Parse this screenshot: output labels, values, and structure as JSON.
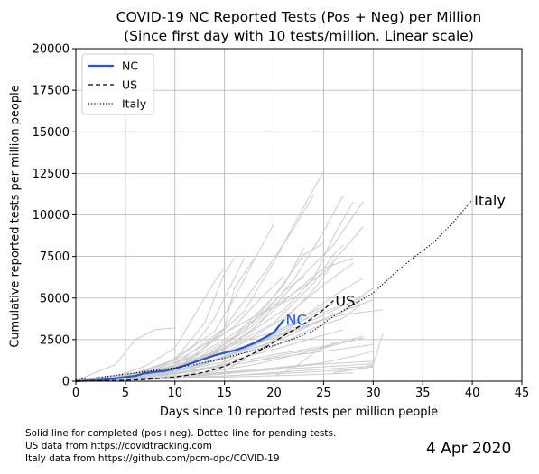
{
  "chart_data": {
    "type": "line",
    "title": "COVID-19 NC Reported Tests (Pos + Neg) per Million",
    "subtitle": "(Since first day with 10 tests/million. Linear scale)",
    "xlabel": "Days since 10 reported tests per million people",
    "ylabel": "Cumulative reported tests per million people",
    "xlim": [
      0,
      45
    ],
    "ylim": [
      0,
      20000
    ],
    "xticks": [
      "0",
      "5",
      "10",
      "15",
      "20",
      "25",
      "30",
      "35",
      "40",
      "45"
    ],
    "xtick_values": [
      0,
      5,
      10,
      15,
      20,
      25,
      30,
      35,
      40,
      45
    ],
    "yticks": [
      "0",
      "2500",
      "5000",
      "7500",
      "10000",
      "12500",
      "15000",
      "17500",
      "20000"
    ],
    "ytick_values": [
      0,
      2500,
      5000,
      7500,
      10000,
      12500,
      15000,
      17500,
      20000
    ],
    "grid": true,
    "legend_position": "top-left",
    "series": [
      {
        "name": "NC",
        "label": "NC",
        "style": "solid",
        "color": "#1f55e6",
        "x": [
          0,
          1,
          2,
          3,
          4,
          5,
          6,
          7,
          8,
          9,
          10,
          11,
          12,
          13,
          14,
          15,
          16,
          17,
          18,
          19,
          20,
          21
        ],
        "y": [
          0,
          30,
          60,
          100,
          170,
          250,
          320,
          480,
          560,
          620,
          760,
          950,
          1150,
          1350,
          1550,
          1700,
          1850,
          2050,
          2300,
          2600,
          2950,
          3700
        ]
      },
      {
        "name": "US",
        "label": "US",
        "style": "dashed",
        "color": "#000000",
        "x": [
          0,
          1,
          2,
          3,
          4,
          5,
          6,
          7,
          8,
          9,
          10,
          11,
          12,
          13,
          14,
          15,
          16,
          17,
          18,
          19,
          20,
          21,
          22,
          23,
          24,
          25,
          26
        ],
        "y": [
          0,
          10,
          20,
          30,
          45,
          60,
          80,
          110,
          150,
          200,
          260,
          340,
          430,
          550,
          700,
          900,
          1150,
          1420,
          1700,
          2000,
          2350,
          2750,
          3100,
          3450,
          3850,
          4300,
          4850
        ]
      },
      {
        "name": "Italy",
        "label": "Italy",
        "style": "dotted",
        "color": "#000000",
        "x": [
          0,
          2,
          4,
          6,
          8,
          10,
          12,
          14,
          16,
          18,
          20,
          22,
          24,
          26,
          28,
          30,
          32,
          34,
          36,
          38,
          40
        ],
        "y": [
          100,
          200,
          350,
          500,
          650,
          800,
          1000,
          1250,
          1550,
          1850,
          2150,
          2550,
          3050,
          3900,
          4600,
          5300,
          6400,
          7400,
          8300,
          9500,
          10900
        ]
      }
    ],
    "background_series": [
      [
        [
          0,
          0
        ],
        [
          5,
          250
        ],
        [
          10,
          800
        ],
        [
          15,
          2500
        ],
        [
          20,
          4500
        ],
        [
          25,
          6500
        ],
        [
          29,
          9300
        ]
      ],
      [
        [
          0,
          0
        ],
        [
          4,
          250
        ],
        [
          8,
          600
        ],
        [
          12,
          1200
        ],
        [
          16,
          1900
        ],
        [
          20,
          2700
        ],
        [
          24,
          3700
        ],
        [
          28,
          4800
        ],
        [
          30,
          5600
        ]
      ],
      [
        [
          0,
          0
        ],
        [
          5,
          200
        ],
        [
          10,
          700
        ],
        [
          14,
          1600
        ],
        [
          18,
          3200
        ],
        [
          22,
          5800
        ],
        [
          26,
          8200
        ],
        [
          29,
          10800
        ]
      ],
      [
        [
          0,
          0
        ],
        [
          6,
          350
        ],
        [
          12,
          1500
        ],
        [
          17,
          4200
        ],
        [
          20,
          7200
        ],
        [
          23,
          10500
        ],
        [
          25,
          12600
        ]
      ],
      [
        [
          0,
          0
        ],
        [
          6,
          300
        ],
        [
          10,
          1000
        ],
        [
          15,
          3200
        ],
        [
          19,
          6500
        ],
        [
          22,
          9200
        ],
        [
          24,
          11200
        ]
      ],
      [
        [
          0,
          0
        ],
        [
          4,
          150
        ],
        [
          8,
          500
        ],
        [
          12,
          1300
        ],
        [
          16,
          2700
        ],
        [
          20,
          5100
        ],
        [
          23,
          7600
        ],
        [
          25,
          8300
        ]
      ],
      [
        [
          0,
          0
        ],
        [
          5,
          200
        ],
        [
          10,
          600
        ],
        [
          15,
          1400
        ],
        [
          19,
          2400
        ],
        [
          23,
          3300
        ],
        [
          27,
          4200
        ],
        [
          29,
          5100
        ]
      ],
      [
        [
          0,
          0
        ],
        [
          4,
          200
        ],
        [
          9,
          600
        ],
        [
          13,
          1400
        ],
        [
          16,
          2200
        ],
        [
          20,
          3000
        ],
        [
          24,
          3900
        ],
        [
          27,
          4600
        ]
      ],
      [
        [
          0,
          0
        ],
        [
          6,
          300
        ],
        [
          11,
          800
        ],
        [
          15,
          1500
        ],
        [
          19,
          2200
        ],
        [
          22,
          3000
        ],
        [
          25,
          3700
        ]
      ],
      [
        [
          0,
          0
        ],
        [
          7,
          250
        ],
        [
          12,
          600
        ],
        [
          17,
          1100
        ],
        [
          21,
          1600
        ],
        [
          25,
          2000
        ],
        [
          29,
          2600
        ]
      ],
      [
        [
          0,
          0
        ],
        [
          5,
          200
        ],
        [
          10,
          500
        ],
        [
          15,
          900
        ],
        [
          20,
          1400
        ],
        [
          25,
          1800
        ],
        [
          30,
          2200
        ]
      ],
      [
        [
          0,
          0
        ],
        [
          8,
          200
        ],
        [
          14,
          400
        ],
        [
          20,
          700
        ],
        [
          26,
          900
        ],
        [
          30,
          1050
        ]
      ],
      [
        [
          0,
          0
        ],
        [
          10,
          200
        ],
        [
          16,
          350
        ],
        [
          22,
          500
        ],
        [
          28,
          700
        ],
        [
          30,
          850
        ]
      ],
      [
        [
          0,
          0
        ],
        [
          6,
          100
        ],
        [
          12,
          200
        ],
        [
          18,
          300
        ],
        [
          24,
          400
        ],
        [
          28,
          500
        ]
      ],
      [
        [
          0,
          50
        ],
        [
          4,
          1000
        ],
        [
          6,
          2500
        ],
        [
          8,
          3100
        ],
        [
          10,
          3200
        ]
      ],
      [
        [
          0,
          0
        ],
        [
          5,
          300
        ],
        [
          10,
          1300
        ],
        [
          14,
          3000
        ],
        [
          16,
          5000
        ],
        [
          18,
          7300
        ],
        [
          20,
          9500
        ]
      ],
      [
        [
          0,
          0
        ],
        [
          5,
          300
        ],
        [
          9,
          1000
        ],
        [
          12,
          2200
        ],
        [
          14,
          3800
        ],
        [
          15,
          5000
        ],
        [
          17,
          7400
        ]
      ],
      [
        [
          0,
          0
        ],
        [
          8,
          500
        ],
        [
          12,
          1500
        ],
        [
          15,
          3200
        ],
        [
          16,
          5600
        ],
        [
          18,
          7400
        ]
      ],
      [
        [
          0,
          0
        ],
        [
          6,
          500
        ],
        [
          10,
          1300
        ],
        [
          13,
          3500
        ],
        [
          15,
          6500
        ],
        [
          16,
          7400
        ]
      ],
      [
        [
          0,
          0
        ],
        [
          4,
          300
        ],
        [
          7,
          900
        ],
        [
          10,
          2000
        ],
        [
          12,
          4000
        ],
        [
          14,
          6000
        ],
        [
          15,
          6800
        ]
      ],
      [
        [
          0,
          0
        ],
        [
          5,
          250
        ],
        [
          10,
          900
        ],
        [
          15,
          1900
        ],
        [
          20,
          3500
        ],
        [
          24,
          5900
        ],
        [
          26,
          7600
        ],
        [
          27,
          8200
        ]
      ],
      [
        [
          0,
          0
        ],
        [
          6,
          300
        ],
        [
          12,
          1100
        ],
        [
          17,
          2700
        ],
        [
          21,
          4800
        ],
        [
          25,
          6800
        ],
        [
          28,
          7400
        ]
      ],
      [
        [
          0,
          0
        ],
        [
          3,
          150
        ],
        [
          7,
          600
        ],
        [
          11,
          1500
        ],
        [
          15,
          2900
        ],
        [
          19,
          4200
        ],
        [
          22,
          5000
        ]
      ],
      [
        [
          0,
          0
        ],
        [
          7,
          300
        ],
        [
          12,
          900
        ],
        [
          16,
          1700
        ],
        [
          20,
          2700
        ],
        [
          24,
          3500
        ],
        [
          27,
          4000
        ],
        [
          31,
          4300
        ]
      ],
      [
        [
          0,
          0
        ],
        [
          10,
          500
        ],
        [
          15,
          1000
        ],
        [
          20,
          1600
        ],
        [
          25,
          2100
        ],
        [
          29,
          2700
        ]
      ],
      [
        [
          0,
          0
        ],
        [
          12,
          300
        ],
        [
          18,
          600
        ],
        [
          24,
          1000
        ],
        [
          28,
          1500
        ],
        [
          30,
          1800
        ]
      ],
      [
        [
          10,
          200
        ],
        [
          15,
          1100
        ],
        [
          20,
          3000
        ],
        [
          24,
          5500
        ],
        [
          26,
          7100
        ]
      ],
      [
        [
          0,
          0
        ],
        [
          5,
          250
        ],
        [
          11,
          1000
        ],
        [
          16,
          2300
        ],
        [
          21,
          4300
        ],
        [
          24,
          6200
        ],
        [
          26,
          8700
        ],
        [
          28,
          10800
        ]
      ],
      [
        [
          0,
          0
        ],
        [
          7,
          400
        ],
        [
          13,
          1400
        ],
        [
          18,
          3400
        ],
        [
          22,
          6100
        ],
        [
          25,
          9000
        ],
        [
          27,
          11200
        ]
      ],
      [
        [
          0,
          0
        ],
        [
          6,
          300
        ],
        [
          12,
          1100
        ],
        [
          17,
          3000
        ],
        [
          21,
          5800
        ],
        [
          23,
          8000
        ]
      ],
      [
        [
          0,
          0
        ],
        [
          4,
          200
        ],
        [
          9,
          700
        ],
        [
          14,
          1800
        ],
        [
          18,
          3600
        ],
        [
          21,
          5400
        ],
        [
          23,
          6300
        ]
      ],
      [
        [
          0,
          0
        ],
        [
          5,
          250
        ],
        [
          10,
          700
        ],
        [
          16,
          2000
        ],
        [
          21,
          3800
        ],
        [
          25,
          5800
        ],
        [
          28,
          7100
        ]
      ],
      [
        [
          0,
          0
        ],
        [
          4,
          200
        ],
        [
          8,
          700
        ],
        [
          12,
          1600
        ],
        [
          16,
          3300
        ],
        [
          19,
          5200
        ],
        [
          21,
          6300
        ]
      ],
      [
        [
          0,
          0
        ],
        [
          9,
          400
        ],
        [
          14,
          1200
        ],
        [
          19,
          2500
        ],
        [
          23,
          3900
        ],
        [
          27,
          5500
        ],
        [
          29,
          6200
        ]
      ],
      [
        [
          0,
          0
        ],
        [
          6,
          250
        ],
        [
          11,
          700
        ],
        [
          16,
          1500
        ],
        [
          21,
          2600
        ],
        [
          26,
          4000
        ],
        [
          30,
          4900
        ]
      ],
      [
        [
          0,
          0
        ],
        [
          8,
          200
        ],
        [
          13,
          500
        ],
        [
          18,
          1000
        ],
        [
          23,
          1700
        ],
        [
          27,
          2400
        ]
      ],
      [
        [
          0,
          0
        ],
        [
          10,
          150
        ],
        [
          16,
          350
        ],
        [
          22,
          600
        ],
        [
          27,
          800
        ],
        [
          30,
          900
        ]
      ],
      [
        [
          0,
          0
        ],
        [
          5,
          100
        ],
        [
          10,
          300
        ],
        [
          15,
          500
        ],
        [
          20,
          800
        ],
        [
          25,
          1100
        ]
      ],
      [
        [
          0,
          0
        ],
        [
          6,
          150
        ],
        [
          12,
          400
        ],
        [
          18,
          700
        ],
        [
          24,
          1000
        ],
        [
          30,
          1200
        ]
      ],
      [
        [
          15,
          600
        ],
        [
          18,
          1700
        ],
        [
          21,
          2900
        ],
        [
          23,
          3900
        ],
        [
          25,
          4500
        ]
      ],
      [
        [
          20,
          300
        ],
        [
          22,
          800
        ],
        [
          24,
          1700
        ],
        [
          26,
          2300
        ]
      ],
      [
        [
          0,
          0
        ],
        [
          4,
          150
        ],
        [
          8,
          400
        ],
        [
          12,
          800
        ],
        [
          16,
          1300
        ],
        [
          20,
          1900
        ],
        [
          24,
          2600
        ],
        [
          27,
          3100
        ]
      ],
      [
        [
          0,
          0
        ],
        [
          6,
          200
        ],
        [
          10,
          600
        ],
        [
          14,
          1300
        ],
        [
          18,
          2200
        ],
        [
          22,
          3400
        ],
        [
          26,
          4700
        ]
      ],
      [
        [
          26,
          500
        ],
        [
          28,
          700
        ],
        [
          30,
          1000
        ],
        [
          31,
          2900
        ]
      ],
      [
        [
          0,
          0
        ],
        [
          5,
          150
        ],
        [
          10,
          400
        ],
        [
          15,
          1000
        ],
        [
          20,
          2100
        ],
        [
          24,
          3200
        ],
        [
          27,
          3800
        ],
        [
          29,
          4700
        ]
      ]
    ],
    "annotations": [
      {
        "text": "NC",
        "x": 21,
        "y": 3700,
        "color": "#1f55e6"
      },
      {
        "text": "US",
        "x": 26,
        "y": 4850,
        "color": "#000000"
      },
      {
        "text": "Italy",
        "x": 40,
        "y": 10900,
        "color": "#000000"
      }
    ]
  },
  "footnotes": [
    "Solid line for completed (pos+neg). Dotted line for pending tests.",
    "US data from https://covidtracking.com",
    "Italy data from https://github.com/pcm-dpc/COVID-19"
  ],
  "date": "4 Apr 2020",
  "colors": {
    "background_lines": "#cccccc",
    "grid": "#b0b0b0",
    "nc": "#1f55e6"
  }
}
